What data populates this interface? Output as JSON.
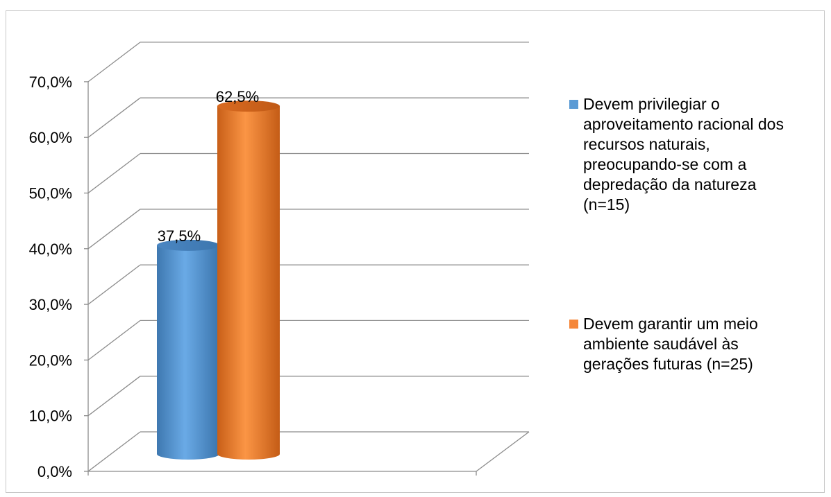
{
  "chart_data": {
    "type": "bar",
    "style": "3d-cylinder",
    "categories": [
      ""
    ],
    "series": [
      {
        "name": "Devem privilegiar o aproveitamento racional dos recursos naturais, preocupando-se com a depredação da natureza (n=15)",
        "values": [
          37.5
        ],
        "label": "37,5%",
        "color": "#5b9bd5"
      },
      {
        "name": "Devem garantir um meio ambiente saudável às gerações futuras (n=25)",
        "values": [
          62.5
        ],
        "label": "62,5%",
        "color": "#f5873a"
      }
    ],
    "y_ticks": [
      "0,0%",
      "10,0%",
      "20,0%",
      "30,0%",
      "40,0%",
      "50,0%",
      "60,0%",
      "70,0%"
    ],
    "ylim": [
      0,
      70
    ],
    "unit": "%",
    "grid": true,
    "legend_position": "right"
  }
}
